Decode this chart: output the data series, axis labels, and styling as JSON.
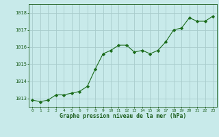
{
  "x": [
    0,
    1,
    2,
    3,
    4,
    5,
    6,
    7,
    8,
    9,
    10,
    11,
    12,
    13,
    14,
    15,
    16,
    17,
    18,
    19,
    20,
    21,
    22,
    23
  ],
  "y": [
    1012.9,
    1012.8,
    1012.9,
    1013.2,
    1013.2,
    1013.3,
    1013.4,
    1013.7,
    1014.7,
    1015.6,
    1015.8,
    1016.1,
    1016.1,
    1015.7,
    1015.8,
    1015.6,
    1015.8,
    1016.3,
    1017.0,
    1017.1,
    1017.7,
    1017.5,
    1017.5,
    1017.8
  ],
  "line_color": "#1a6b1a",
  "marker": "D",
  "marker_size": 2.2,
  "bg_color": "#c8eaea",
  "grid_color": "#a8cccc",
  "xlabel": "Graphe pression niveau de la mer (hPa)",
  "xlabel_color": "#1a5c1a",
  "tick_color": "#1a5c1a",
  "ylim": [
    1012.5,
    1018.5
  ],
  "yticks": [
    1013,
    1014,
    1015,
    1016,
    1017,
    1018
  ],
  "xlim": [
    -0.5,
    23.5
  ],
  "xticks": [
    0,
    1,
    2,
    3,
    4,
    5,
    6,
    7,
    8,
    9,
    10,
    11,
    12,
    13,
    14,
    15,
    16,
    17,
    18,
    19,
    20,
    21,
    22,
    23
  ]
}
